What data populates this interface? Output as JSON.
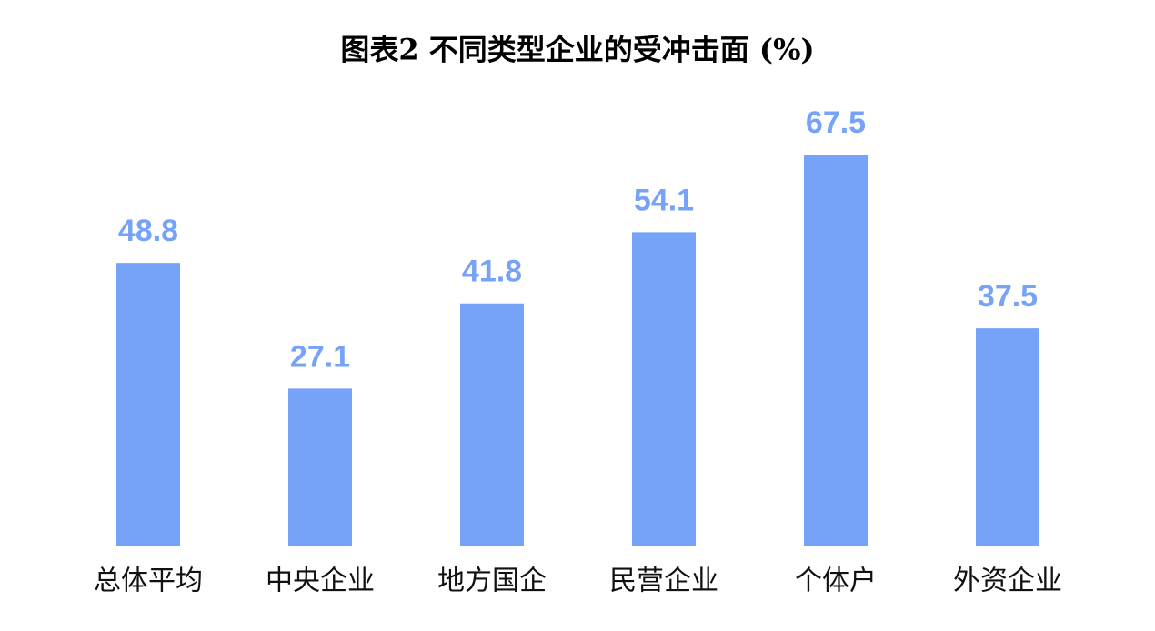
{
  "chart_data": {
    "type": "bar",
    "title": "图表2  不同类型企业的受冲击面 (%)",
    "categories": [
      "总体平均",
      "中央企业",
      "地方国企",
      "民营企业",
      "个体户",
      "外资企业"
    ],
    "values": [
      48.8,
      27.1,
      41.8,
      54.1,
      67.5,
      37.5
    ],
    "color": "#76a2f7"
  }
}
